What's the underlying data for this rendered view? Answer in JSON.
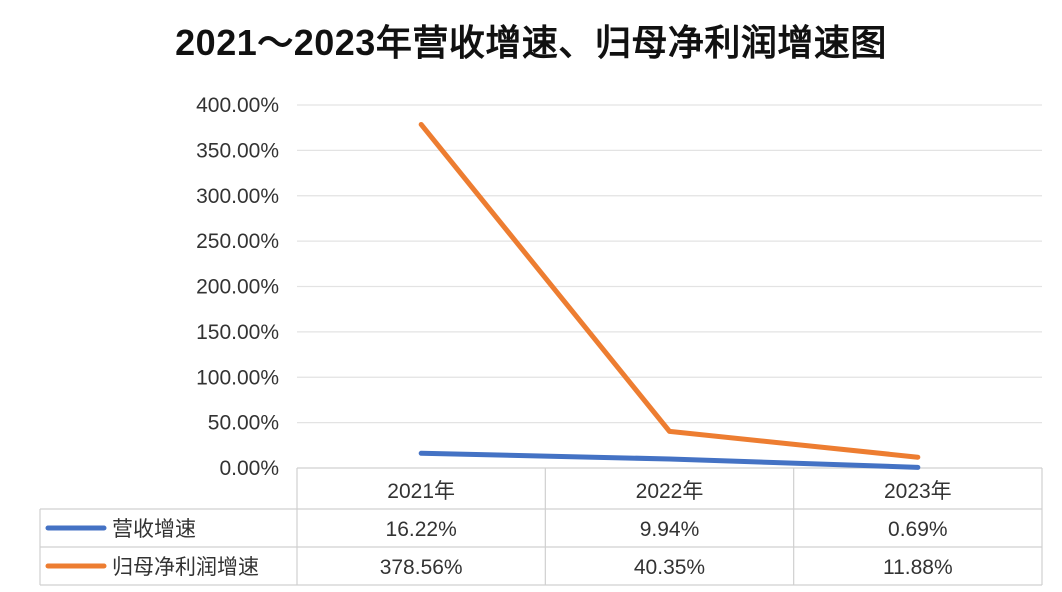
{
  "chart_data": {
    "type": "line",
    "title": "2021～2023年营收增速、归母净利润增速图",
    "categories": [
      "2021年",
      "2022年",
      "2023年"
    ],
    "y_ticks": [
      "0.00%",
      "50.00%",
      "100.00%",
      "150.00%",
      "200.00%",
      "250.00%",
      "300.00%",
      "350.00%",
      "400.00%"
    ],
    "ylim": [
      0,
      400
    ],
    "grid": true,
    "legend": "data-table",
    "series": [
      {
        "name": "营收增速",
        "values": [
          16.22,
          9.94,
          0.69
        ],
        "labels": [
          "16.22%",
          "9.94%",
          "0.69%"
        ],
        "color": "#4472c4"
      },
      {
        "name": "归母净利润增速",
        "values": [
          378.56,
          40.35,
          11.88
        ],
        "labels": [
          "378.56%",
          "40.35%",
          "11.88%"
        ],
        "color": "#ed7d31"
      }
    ]
  }
}
